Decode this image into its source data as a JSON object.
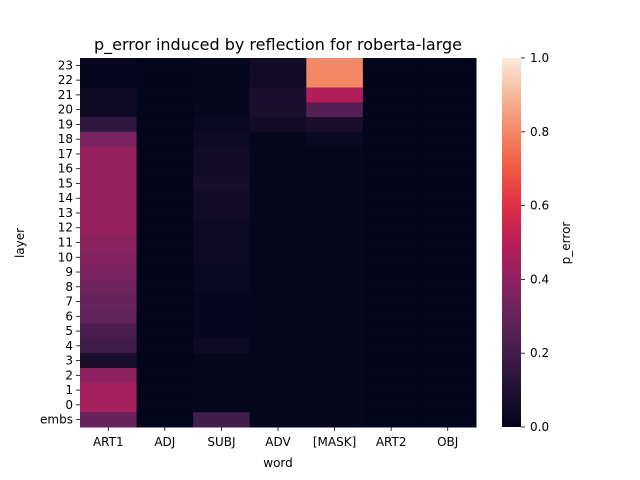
{
  "chart_data": {
    "type": "heatmap",
    "title": "p_error induced by reflection for roberta-large",
    "xlabel": "word",
    "ylabel": "layer",
    "colorbar_label": "p_error",
    "colorbar_range": [
      0.0,
      1.0
    ],
    "colorbar_ticks": [
      "0.0",
      "0.2",
      "0.4",
      "0.6",
      "0.8",
      "1.0"
    ],
    "colormap": "rocket",
    "x_categories": [
      "ART1",
      "ADJ",
      "SUBJ",
      "ADV",
      "[MASK]",
      "ART2",
      "OBJ"
    ],
    "y_categories": [
      "23",
      "22",
      "21",
      "20",
      "19",
      "18",
      "17",
      "16",
      "15",
      "14",
      "13",
      "12",
      "11",
      "10",
      "9",
      "8",
      "7",
      "6",
      "5",
      "4",
      "3",
      "2",
      "1",
      "0",
      "embs"
    ],
    "values": [
      [
        0.02,
        0.0,
        0.01,
        0.05,
        0.8,
        0.0,
        0.0
      ],
      [
        0.02,
        0.0,
        0.01,
        0.05,
        0.8,
        0.0,
        0.0
      ],
      [
        0.04,
        0.0,
        0.01,
        0.08,
        0.48,
        0.0,
        0.0
      ],
      [
        0.04,
        0.0,
        0.02,
        0.08,
        0.25,
        0.0,
        0.0
      ],
      [
        0.15,
        0.0,
        0.03,
        0.05,
        0.08,
        0.0,
        0.0
      ],
      [
        0.35,
        0.0,
        0.04,
        0.01,
        0.03,
        0.0,
        0.0
      ],
      [
        0.42,
        0.0,
        0.05,
        0.01,
        0.01,
        0.0,
        0.0
      ],
      [
        0.42,
        0.0,
        0.05,
        0.01,
        0.01,
        0.0,
        0.0
      ],
      [
        0.42,
        0.0,
        0.07,
        0.01,
        0.01,
        0.0,
        0.0
      ],
      [
        0.42,
        0.0,
        0.05,
        0.01,
        0.01,
        0.0,
        0.0
      ],
      [
        0.42,
        0.0,
        0.05,
        0.01,
        0.01,
        0.0,
        0.0
      ],
      [
        0.42,
        0.0,
        0.04,
        0.01,
        0.01,
        0.0,
        0.0
      ],
      [
        0.39,
        0.0,
        0.04,
        0.01,
        0.01,
        0.0,
        0.0
      ],
      [
        0.37,
        0.0,
        0.04,
        0.01,
        0.01,
        0.0,
        0.0
      ],
      [
        0.35,
        0.0,
        0.03,
        0.01,
        0.01,
        0.0,
        0.0
      ],
      [
        0.32,
        0.0,
        0.03,
        0.01,
        0.01,
        0.0,
        0.0
      ],
      [
        0.3,
        0.0,
        0.02,
        0.01,
        0.01,
        0.0,
        0.0
      ],
      [
        0.29,
        0.0,
        0.02,
        0.01,
        0.01,
        0.0,
        0.0
      ],
      [
        0.22,
        0.0,
        0.02,
        0.01,
        0.01,
        0.0,
        0.0
      ],
      [
        0.2,
        0.0,
        0.04,
        0.01,
        0.01,
        0.0,
        0.0
      ],
      [
        0.08,
        0.0,
        0.01,
        0.01,
        0.01,
        0.0,
        0.0
      ],
      [
        0.4,
        0.0,
        0.01,
        0.01,
        0.01,
        0.0,
        0.0
      ],
      [
        0.45,
        0.0,
        0.01,
        0.01,
        0.01,
        0.0,
        0.0
      ],
      [
        0.45,
        0.0,
        0.01,
        0.01,
        0.01,
        0.0,
        0.0
      ],
      [
        0.3,
        0.0,
        0.2,
        0.01,
        0.01,
        0.0,
        0.0
      ]
    ]
  }
}
